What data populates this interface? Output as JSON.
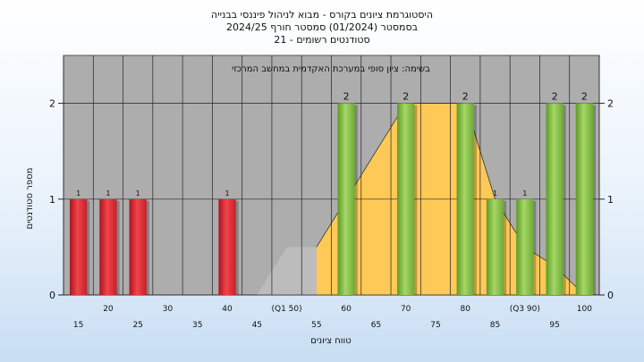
{
  "chart_data": {
    "type": "bar",
    "title_lines": [
      "היסטוגרמת ציונים בקורס - מבוא לניהול פיננסי בבנייה",
      "בסמסטר  (01/2024)  סמסטר חורף  2024/25",
      "סטודנטים רשומים - 21"
    ],
    "plot_title": "בשימה: ציון סופי במערכת האקדמית במחשב המרכזי",
    "ylabel": "מספר סטודנטים",
    "xlabel": "טווח ציונים",
    "ylim": [
      0,
      2.5
    ],
    "yticks": [
      0,
      1,
      2
    ],
    "categories": [
      "15",
      "20",
      "25",
      "30",
      "35",
      "40",
      "45",
      "(Q1 50)",
      "55",
      "60",
      "65",
      "70",
      "75",
      "80",
      "85",
      "(Q3 90)",
      "95",
      "100"
    ],
    "values": [
      1,
      1,
      1,
      0,
      0,
      1,
      0,
      0,
      0,
      2,
      0,
      2,
      0,
      2,
      1,
      1,
      2,
      2
    ],
    "value_labels": [
      "1",
      "1",
      "1",
      "",
      "",
      "1",
      "",
      "",
      "",
      "2",
      "",
      "2",
      "",
      "2",
      "1",
      "1",
      "2",
      "2"
    ],
    "fail_threshold": 55,
    "colors": {
      "fail": "#e8333b",
      "pass": "#8cc44a",
      "distribution_area": "#ffc957",
      "quartile_area": "#bcbcbc",
      "plot_background": "#adadad",
      "gridline": "#222222"
    },
    "distribution_area_y": [
      0,
      0,
      0,
      0,
      0,
      0,
      0,
      0.5,
      0.5,
      1.0,
      1.5,
      2.0,
      2.0,
      2.0,
      1.0,
      0.5,
      0.3,
      0
    ]
  }
}
